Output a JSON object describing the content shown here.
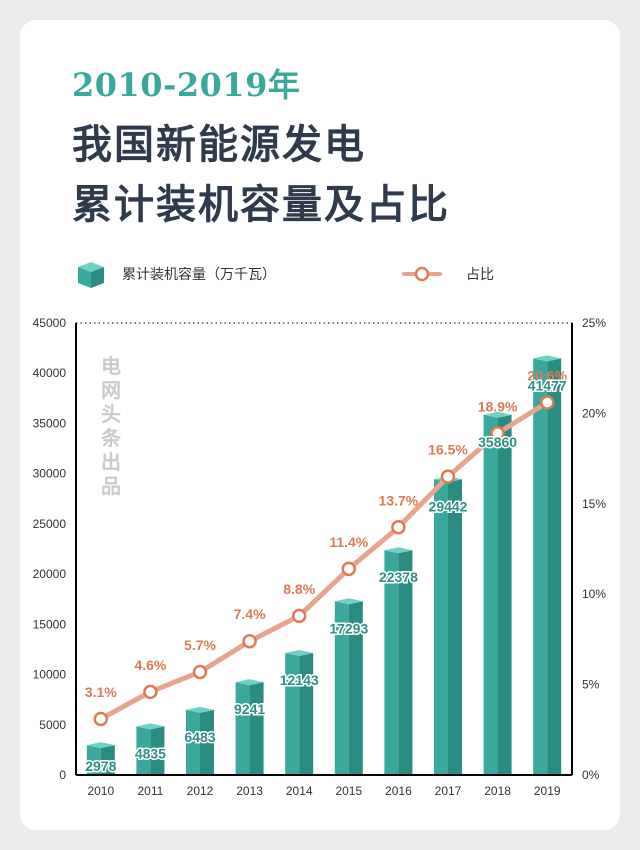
{
  "header": {
    "year_range": "2010-2019年",
    "title_line1": "我国新能源发电",
    "title_line2": "累计装机容量及占比"
  },
  "watermark": [
    "电",
    "网",
    "头",
    "条",
    "出",
    "品"
  ],
  "chart_data": {
    "type": "bar+line",
    "title": "2010-2019年 我国新能源发电累计装机容量及占比",
    "categories": [
      "2010",
      "2011",
      "2012",
      "2013",
      "2014",
      "2015",
      "2016",
      "2017",
      "2018",
      "2019"
    ],
    "series": [
      {
        "name": "累计装机容量（万千瓦）",
        "type": "bar",
        "axis": "left",
        "color": "#3aa89c",
        "values": [
          2978,
          4835,
          6483,
          9241,
          12143,
          17293,
          22378,
          29442,
          35860,
          41477
        ]
      },
      {
        "name": "占比",
        "type": "line",
        "axis": "right",
        "color": "#e8a58e",
        "marker_color": "#e07a55",
        "values": [
          3.1,
          4.6,
          5.7,
          7.4,
          8.8,
          11.4,
          13.7,
          16.5,
          18.9,
          20.6
        ],
        "labels": [
          "3.1%",
          "4.6%",
          "5.7%",
          "7.4%",
          "8.8%",
          "11.4%",
          "13.7%",
          "16.5%",
          "18.9%",
          "20.6%"
        ]
      }
    ],
    "left_axis": {
      "min": 0,
      "max": 45000,
      "ticks": [
        "0",
        "5000",
        "10000",
        "15000",
        "20000",
        "25000",
        "30000",
        "35000",
        "40000",
        "45000"
      ]
    },
    "right_axis": {
      "min": 0,
      "max": 25,
      "ticks": [
        "0%",
        "5%",
        "10%",
        "15%",
        "20%",
        "25%"
      ]
    },
    "legend_position": "top"
  }
}
